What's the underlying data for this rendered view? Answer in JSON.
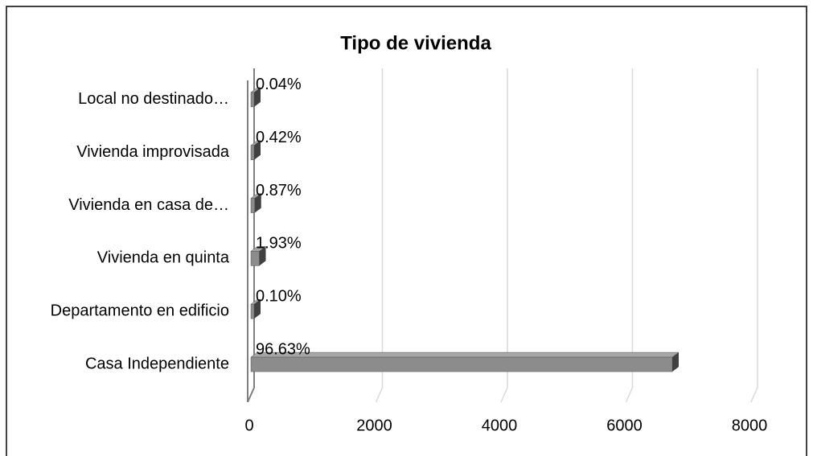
{
  "chart_data": {
    "type": "bar3d_horizontal",
    "title": "Tipo de vivienda",
    "categories": [
      "Casa Independiente",
      "Departamento en edificio",
      "Vivienda en quinta",
      "Vivienda en casa de…",
      "Vivienda improvisada",
      "Local no destinado…"
    ],
    "values": [
      6740,
      7,
      135,
      61,
      29,
      3
    ],
    "percent_labels": [
      "96.63%",
      "0.10%",
      "1.93%",
      "0.87%",
      "0.42%",
      "0.04%"
    ],
    "color": "#8c8c8c",
    "xlim": [
      0,
      8000
    ],
    "xticks": [
      0,
      2000,
      4000,
      6000,
      8000
    ],
    "grid": true
  }
}
